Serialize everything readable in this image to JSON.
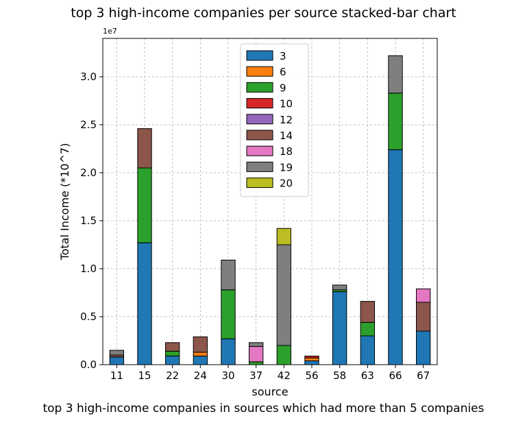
{
  "chart_data": {
    "type": "bar",
    "stacked": true,
    "title": "top 3 high-income companies per source stacked-bar chart",
    "caption": "top 3 high-income companies in sources which had more than 5 companies",
    "xlabel": "source",
    "ylabel": "Total Income (*10^7)",
    "scale_label": "1e7",
    "ylim": [
      0,
      3.4
    ],
    "yticks": [
      "0.0",
      "0.5",
      "1.0",
      "1.5",
      "2.0",
      "2.5",
      "3.0"
    ],
    "grid": true,
    "legend_position": "top-center",
    "categories": [
      "11",
      "15",
      "22",
      "24",
      "30",
      "37",
      "42",
      "56",
      "58",
      "63",
      "66",
      "67"
    ],
    "series": [
      {
        "name": "3",
        "color": "#1f77b4",
        "values": [
          0.08,
          1.27,
          0.09,
          0.09,
          0.27,
          0,
          0,
          0.04,
          0.76,
          0.3,
          2.24,
          0.35
        ]
      },
      {
        "name": "6",
        "color": "#ff7f0e",
        "values": [
          0,
          0,
          0,
          0.04,
          0,
          0,
          0,
          0.03,
          0,
          0,
          0,
          0
        ]
      },
      {
        "name": "9",
        "color": "#2ca02c",
        "values": [
          0,
          0.78,
          0.05,
          0,
          0.51,
          0.03,
          0.2,
          0,
          0.02,
          0.14,
          0.59,
          0
        ]
      },
      {
        "name": "10",
        "color": "#d62728",
        "values": [
          0,
          0,
          0,
          0,
          0,
          0,
          0,
          0.02,
          0,
          0,
          0,
          0
        ]
      },
      {
        "name": "12",
        "color": "#9467bd",
        "values": [
          0,
          0,
          0,
          0,
          0,
          0,
          0,
          0,
          0,
          0,
          0,
          0
        ]
      },
      {
        "name": "14",
        "color": "#8c564b",
        "values": [
          0.02,
          0.41,
          0.09,
          0.16,
          0,
          0,
          0,
          0,
          0,
          0.22,
          0,
          0.3
        ]
      },
      {
        "name": "18",
        "color": "#e377c2",
        "values": [
          0,
          0,
          0,
          0,
          0,
          0.16,
          0,
          0,
          0,
          0,
          0,
          0.14
        ]
      },
      {
        "name": "19",
        "color": "#7f7f7f",
        "values": [
          0.05,
          0,
          0,
          0,
          0.31,
          0.04,
          1.05,
          0,
          0.05,
          0,
          0.39,
          0
        ]
      },
      {
        "name": "20",
        "color": "#bcbd22",
        "values": [
          0,
          0,
          0,
          0,
          0,
          0,
          0.17,
          0,
          0,
          0,
          0,
          0
        ]
      }
    ]
  }
}
